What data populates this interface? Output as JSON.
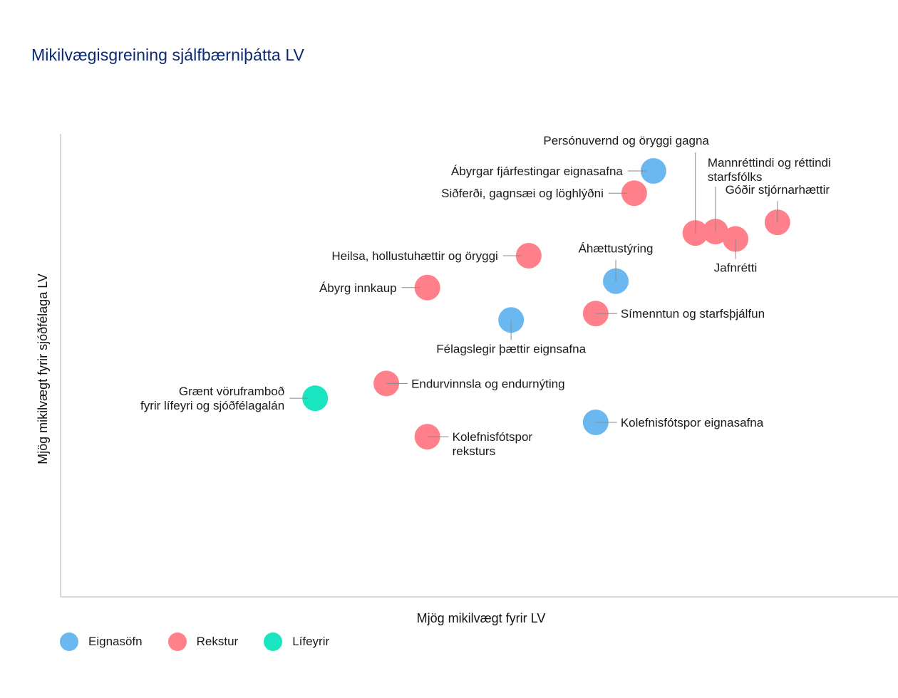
{
  "title": "Mikilvægisgreining sjálfbærniþátta LV",
  "colors": {
    "Eignasöfn": "#6bb8f0",
    "Rekstur": "#ff7f8a",
    "Lífeyrir": "#19e6c1",
    "axis": "#cccccc",
    "leader": "#8a8a8a"
  },
  "chart_data": {
    "type": "scatter",
    "title": "Mikilvægisgreining sjálfbærniþátta LV",
    "xlabel": "Mjög mikilvægt fyrir LV",
    "ylabel": "Mjög mikilvægt fyrir sjóðfélaga LV",
    "xlim": [
      0,
      100
    ],
    "ylim": [
      0,
      100
    ],
    "grid": false,
    "legend_position": "bottom-left",
    "series": [
      {
        "name": "Eignasöfn",
        "color_key": "Eignasöfn"
      },
      {
        "name": "Rekstur",
        "color_key": "Rekstur"
      },
      {
        "name": "Lífeyrir",
        "color_key": "Lífeyrir"
      }
    ],
    "points": [
      {
        "series": "Eignasöfn",
        "x": 70.8,
        "y": 92,
        "label": [
          "Ábyrgar fjárfestingar eignasafna"
        ],
        "lpos": "left"
      },
      {
        "series": "Rekstur",
        "x": 68.5,
        "y": 87.2,
        "label": [
          "Siðferði, gagnsæi og löghlýðni"
        ],
        "lpos": "left"
      },
      {
        "series": "Rekstur",
        "x": 75.8,
        "y": 78.6,
        "label": [
          "Persónuvernd og öryggi gagna"
        ],
        "lpos": "top-far"
      },
      {
        "series": "Rekstur",
        "x": 78.2,
        "y": 78.9,
        "label": [
          "Mannréttindi og réttindi",
          "starfsfólks"
        ],
        "lpos": "top-right"
      },
      {
        "series": "Rekstur",
        "x": 80.6,
        "y": 77.3,
        "label": [
          "Jafnrétti"
        ],
        "lpos": "bottom"
      },
      {
        "series": "Rekstur",
        "x": 85.6,
        "y": 80.9,
        "label": [
          "Góðir stjórnarhættir"
        ],
        "lpos": "top"
      },
      {
        "series": "Rekstur",
        "x": 55.9,
        "y": 73.7,
        "label": [
          "Heilsa, hollustuhættir og öryggi"
        ],
        "lpos": "left"
      },
      {
        "series": "Eignasöfn",
        "x": 66.3,
        "y": 68.2,
        "label": [
          "Áhættustýring"
        ],
        "lpos": "top"
      },
      {
        "series": "Rekstur",
        "x": 43.8,
        "y": 66.8,
        "label": [
          "Ábyrg innkaup"
        ],
        "lpos": "left"
      },
      {
        "series": "Rekstur",
        "x": 63.9,
        "y": 61.2,
        "label": [
          "Símenntun og starfsþjálfun"
        ],
        "lpos": "right"
      },
      {
        "series": "Eignasöfn",
        "x": 53.8,
        "y": 59.8,
        "label": [
          "Félagslegir þættir eignsafna"
        ],
        "lpos": "bottom"
      },
      {
        "series": "Rekstur",
        "x": 38.9,
        "y": 46.1,
        "label": [
          "Endurvinnsla og endurnýting"
        ],
        "lpos": "right"
      },
      {
        "series": "Lífeyrir",
        "x": 30.4,
        "y": 42.9,
        "label": [
          "Grænt vöruframboð",
          "fyrir lífeyri og sjóðfélagalán"
        ],
        "lpos": "left"
      },
      {
        "series": "Eignasöfn",
        "x": 63.9,
        "y": 37.7,
        "label": [
          "Kolefnisfótspor eignasafna"
        ],
        "lpos": "right"
      },
      {
        "series": "Rekstur",
        "x": 43.8,
        "y": 34.6,
        "label": [
          "Kolefnisfótspor",
          "reksturs"
        ],
        "lpos": "right"
      }
    ]
  },
  "legend": [
    {
      "label": "Eignasöfn",
      "color_key": "Eignasöfn"
    },
    {
      "label": "Rekstur",
      "color_key": "Rekstur"
    },
    {
      "label": "Lífeyrir",
      "color_key": "Lífeyrir"
    }
  ]
}
